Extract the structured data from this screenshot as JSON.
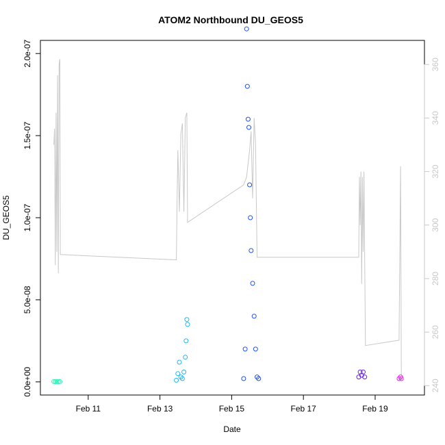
{
  "chart_data": {
    "type": "scatter",
    "title": "ATOM2 Northbound DU_GEOS5",
    "xlabel": "Date",
    "ylabel": "DU_GEOS5",
    "xlim": [
      "2016-02-09T16:00",
      "2016-02-20T09:00"
    ],
    "ylim": [
      -8e-09,
      2.08e-07
    ],
    "y2lim": [
      236.5,
      369
    ],
    "x_ticks": [
      {
        "label": "Feb 11",
        "value": "2016-02-11"
      },
      {
        "label": "Feb 13",
        "value": "2016-02-13"
      },
      {
        "label": "Feb 15",
        "value": "2016-02-15"
      },
      {
        "label": "Feb 17",
        "value": "2016-02-17"
      },
      {
        "label": "Feb 19",
        "value": "2016-02-19"
      }
    ],
    "y_ticks": [
      {
        "label": "0.0e+00",
        "value": 0
      },
      {
        "label": "5.0e-08",
        "value": 5e-08
      },
      {
        "label": "1.0e-07",
        "value": 1e-07
      },
      {
        "label": "1.5e-07",
        "value": 1.5e-07
      },
      {
        "label": "2.0e-07",
        "value": 2e-07
      }
    ],
    "y2_ticks": [
      {
        "label": "240",
        "value": 240
      },
      {
        "label": "260",
        "value": 260
      },
      {
        "label": "280",
        "value": 280
      },
      {
        "label": "300",
        "value": 300
      },
      {
        "label": "320",
        "value": 320
      },
      {
        "label": "340",
        "value": 340
      },
      {
        "label": "360",
        "value": 360
      }
    ],
    "grid": false,
    "legend": "none",
    "secondary_line_color": "#c8c8c8",
    "secondary_line": [
      [
        "2016-02-10T01:00",
        330
      ],
      [
        "2016-02-10T01:30",
        336
      ],
      [
        "2016-02-10T02:00",
        285
      ],
      [
        "2016-02-10T02:30",
        342
      ],
      [
        "2016-02-10T03:00",
        290
      ],
      [
        "2016-02-10T03:30",
        356
      ],
      [
        "2016-02-10T04:00",
        282
      ],
      [
        "2016-02-10T04:30",
        360
      ],
      [
        "2016-02-10T05:00",
        362
      ],
      [
        "2016-02-10T05:20",
        289
      ],
      [
        "2016-02-13T11:00",
        287
      ],
      [
        "2016-02-13T11:30",
        310
      ],
      [
        "2016-02-13T12:00",
        328
      ],
      [
        "2016-02-13T13:00",
        305
      ],
      [
        "2016-02-13T14:00",
        334
      ],
      [
        "2016-02-13T15:00",
        338
      ],
      [
        "2016-02-13T16:00",
        305
      ],
      [
        "2016-02-13T17:00",
        340
      ],
      [
        "2016-02-13T18:00",
        342
      ],
      [
        "2016-02-13T18:30",
        301
      ],
      [
        "2016-02-15T08:00",
        315
      ],
      [
        "2016-02-15T10:00",
        318
      ],
      [
        "2016-02-15T12:00",
        328
      ],
      [
        "2016-02-15T13:00",
        335
      ],
      [
        "2016-02-15T14:00",
        310
      ],
      [
        "2016-02-15T15:00",
        340
      ],
      [
        "2016-02-15T16:00",
        330
      ],
      [
        "2016-02-15T17:00",
        288
      ],
      [
        "2016-02-18T13:00",
        288
      ],
      [
        "2016-02-18T13:30",
        318
      ],
      [
        "2016-02-18T14:00",
        300
      ],
      [
        "2016-02-18T14:30",
        320
      ],
      [
        "2016-02-18T15:00",
        278
      ],
      [
        "2016-02-18T15:30",
        318
      ],
      [
        "2016-02-18T16:00",
        290
      ],
      [
        "2016-02-18T16:30",
        320
      ],
      [
        "2016-02-18T17:30",
        255
      ],
      [
        "2016-02-19T16:00",
        257
      ],
      [
        "2016-02-19T17:00",
        322
      ],
      [
        "2016-02-19T17:30",
        244
      ]
    ],
    "series": [
      {
        "color": "#2ef0b8",
        "points": [
          [
            "2016-02-10T01:00",
            2e-10
          ],
          [
            "2016-02-10T02:00",
            1e-10
          ],
          [
            "2016-02-10T03:00",
            2e-10
          ],
          [
            "2016-02-10T04:00",
            1e-10
          ],
          [
            "2016-02-10T05:00",
            2e-10
          ]
        ]
      },
      {
        "color": "#1fb6f2",
        "points": [
          [
            "2016-02-13T11:00",
            1e-09
          ],
          [
            "2016-02-13T12:00",
            5e-09
          ],
          [
            "2016-02-13T13:00",
            1.2e-08
          ],
          [
            "2016-02-13T14:00",
            3e-09
          ],
          [
            "2016-02-13T15:00",
            2e-09
          ],
          [
            "2016-02-13T16:00",
            6e-09
          ],
          [
            "2016-02-13T17:00",
            1.5e-08
          ],
          [
            "2016-02-13T17:30",
            2.5e-08
          ],
          [
            "2016-02-13T18:00",
            3.8e-08
          ],
          [
            "2016-02-13T18:30",
            3.5e-08
          ]
        ]
      },
      {
        "color": "#1e50f0",
        "points": [
          [
            "2016-02-15T08:00",
            2e-09
          ],
          [
            "2016-02-15T09:00",
            2e-08
          ],
          [
            "2016-02-15T10:00",
            2.15e-07
          ],
          [
            "2016-02-15T10:30",
            1.8e-07
          ],
          [
            "2016-02-15T11:00",
            1.6e-07
          ],
          [
            "2016-02-15T11:30",
            1.55e-07
          ],
          [
            "2016-02-15T12:00",
            1.2e-07
          ],
          [
            "2016-02-15T12:30",
            1e-07
          ],
          [
            "2016-02-15T13:00",
            8e-08
          ],
          [
            "2016-02-15T14:00",
            6e-08
          ],
          [
            "2016-02-15T15:00",
            4e-08
          ],
          [
            "2016-02-15T16:00",
            2e-08
          ],
          [
            "2016-02-15T17:00",
            3e-09
          ],
          [
            "2016-02-15T18:00",
            2e-09
          ]
        ]
      },
      {
        "color": "#6a1ef0",
        "points": [
          [
            "2016-02-18T13:00",
            3e-09
          ],
          [
            "2016-02-18T14:00",
            6e-09
          ],
          [
            "2016-02-18T15:00",
            4e-09
          ],
          [
            "2016-02-18T16:00",
            6e-09
          ],
          [
            "2016-02-18T17:00",
            3e-09
          ]
        ]
      },
      {
        "color": "#f01ef0",
        "points": [
          [
            "2016-02-19T16:00",
            2e-09
          ],
          [
            "2016-02-19T17:00",
            3e-09
          ],
          [
            "2016-02-19T17:30",
            2e-09
          ]
        ]
      }
    ]
  }
}
